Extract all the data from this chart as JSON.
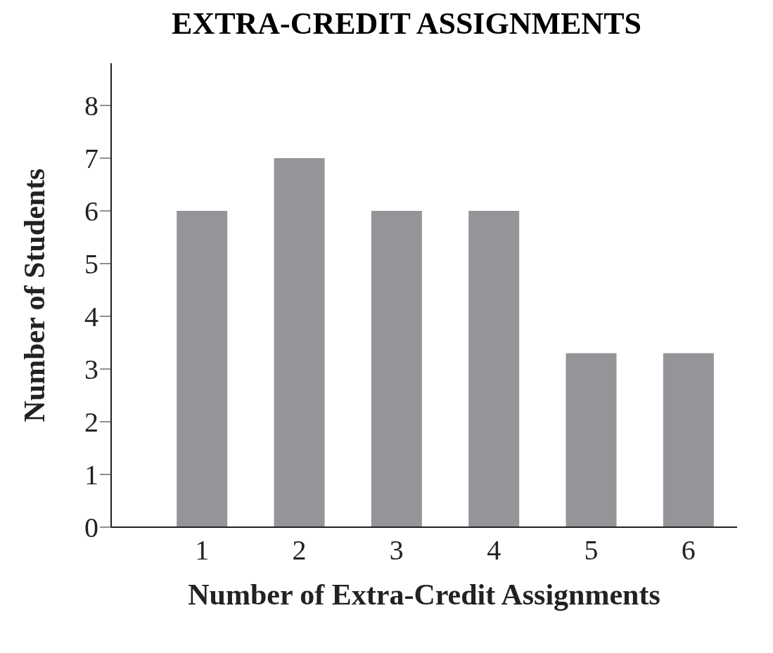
{
  "chart_data": {
    "type": "bar",
    "title": "EXTRA-CREDIT ASSIGNMENTS",
    "xlabel": "Number of Extra-Credit Assignments",
    "ylabel": "Number of Students",
    "categories": [
      "1",
      "2",
      "3",
      "4",
      "5",
      "6"
    ],
    "values": [
      6,
      7,
      6,
      6,
      3.3,
      3.3
    ],
    "color": "#939598",
    "ylim": [
      0,
      8.8
    ],
    "yticks": [
      0,
      1,
      2,
      3,
      4,
      5,
      6,
      7,
      8
    ],
    "grid": false
  }
}
